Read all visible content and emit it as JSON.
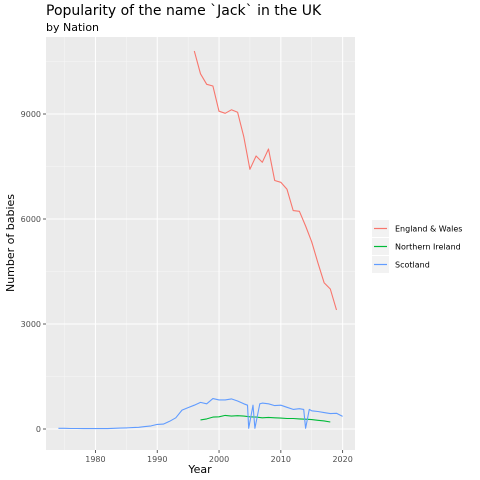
{
  "chart_data": {
    "type": "line",
    "title": "Popularity of the name `Jack` in the UK",
    "subtitle": "by Nation",
    "xlabel": "Year",
    "ylabel": "Number of babies",
    "xlim": [
      1972,
      2022
    ],
    "ylim": [
      -600,
      11200
    ],
    "x_ticks": [
      1980,
      1990,
      2000,
      2010,
      2020
    ],
    "y_ticks": [
      0,
      3000,
      6000,
      9000
    ],
    "grid": true,
    "legend_position": "right",
    "series": [
      {
        "name": "England & Wales",
        "color": "#F8766D",
        "points": [
          [
            1996,
            10800
          ],
          [
            1997,
            10150
          ],
          [
            1998,
            9850
          ],
          [
            1999,
            9800
          ],
          [
            2000,
            9080
          ],
          [
            2001,
            9020
          ],
          [
            2002,
            9120
          ],
          [
            2003,
            9050
          ],
          [
            2004,
            8350
          ],
          [
            2005,
            7420
          ],
          [
            2006,
            7800
          ],
          [
            2007,
            7620
          ],
          [
            2008,
            8000
          ],
          [
            2009,
            7100
          ],
          [
            2010,
            7050
          ],
          [
            2011,
            6850
          ],
          [
            2012,
            6240
          ],
          [
            2013,
            6220
          ],
          [
            2014,
            5800
          ],
          [
            2015,
            5350
          ],
          [
            2016,
            4750
          ],
          [
            2017,
            4180
          ],
          [
            2018,
            4000
          ],
          [
            2019,
            3400
          ]
        ]
      },
      {
        "name": "Northern Ireland",
        "color": "#00BA38",
        "points": [
          [
            1997,
            260
          ],
          [
            1998,
            290
          ],
          [
            1999,
            340
          ],
          [
            2000,
            350
          ],
          [
            2001,
            390
          ],
          [
            2002,
            370
          ],
          [
            2003,
            380
          ],
          [
            2004,
            370
          ],
          [
            2005,
            350
          ],
          [
            2006,
            340
          ],
          [
            2007,
            320
          ],
          [
            2008,
            330
          ],
          [
            2009,
            320
          ],
          [
            2010,
            310
          ],
          [
            2011,
            300
          ],
          [
            2012,
            300
          ],
          [
            2013,
            290
          ],
          [
            2014,
            280
          ],
          [
            2015,
            270
          ],
          [
            2016,
            250
          ],
          [
            2017,
            230
          ],
          [
            2018,
            200
          ]
        ]
      },
      {
        "name": "Scotland",
        "color": "#619CFF",
        "points": [
          [
            1974,
            20
          ],
          [
            1975,
            20
          ],
          [
            1976,
            15
          ],
          [
            1977,
            15
          ],
          [
            1978,
            10
          ],
          [
            1979,
            15
          ],
          [
            1980,
            10
          ],
          [
            1981,
            15
          ],
          [
            1982,
            10
          ],
          [
            1983,
            20
          ],
          [
            1984,
            25
          ],
          [
            1985,
            30
          ],
          [
            1986,
            40
          ],
          [
            1987,
            50
          ],
          [
            1988,
            70
          ],
          [
            1989,
            90
          ],
          [
            1990,
            130
          ],
          [
            1991,
            140
          ],
          [
            1992,
            220
          ],
          [
            1993,
            320
          ],
          [
            1994,
            540
          ],
          [
            1995,
            610
          ],
          [
            1996,
            680
          ],
          [
            1997,
            760
          ],
          [
            1998,
            720
          ],
          [
            1999,
            870
          ],
          [
            2000,
            830
          ],
          [
            2001,
            830
          ],
          [
            2002,
            860
          ],
          [
            2003,
            800
          ],
          [
            2004,
            720
          ],
          [
            2004.6,
            680
          ],
          [
            2004.8,
            20
          ],
          [
            2005.5,
            680
          ],
          [
            2005.8,
            20
          ],
          [
            2006.6,
            720
          ],
          [
            2007,
            740
          ],
          [
            2008,
            720
          ],
          [
            2009,
            670
          ],
          [
            2010,
            680
          ],
          [
            2011,
            620
          ],
          [
            2012,
            560
          ],
          [
            2013,
            580
          ],
          [
            2013.7,
            560
          ],
          [
            2014,
            20
          ],
          [
            2014.6,
            560
          ],
          [
            2015,
            520
          ],
          [
            2016,
            500
          ],
          [
            2017,
            470
          ],
          [
            2018,
            440
          ],
          [
            2019,
            450
          ],
          [
            2020,
            360
          ]
        ]
      }
    ]
  }
}
